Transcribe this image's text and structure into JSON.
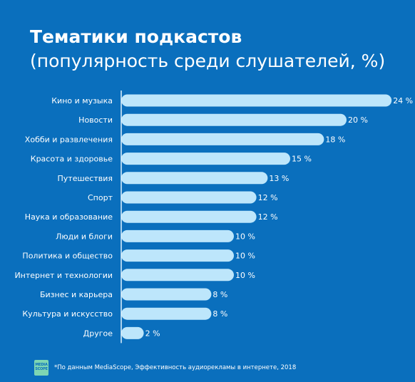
{
  "title": "Тематики подкастов",
  "subtitle": "(популярность среди слушателей, %)",
  "source": "*По данным MediaScope, Эффективность аудиорекламы в интернете, 2018",
  "logo": {
    "line1": "MEDIA",
    "line2": "SCOPE"
  },
  "colors": {
    "background": "#0a6fbd",
    "bar": "#bde6fb",
    "axis": "#dff2fd",
    "text": "#ffffff"
  },
  "chart_data": {
    "type": "bar",
    "orientation": "horizontal",
    "categories": [
      "Кино и музыка",
      "Новости",
      "Хобби и развлечения",
      "Красота и здоровье",
      "Путешествия",
      "Спорт",
      "Наука и образование",
      "Люди и блоги",
      "Политика и общество",
      "Интернет и технологии",
      "Бизнес и карьера",
      "Культура и искусство",
      "Другое"
    ],
    "values": [
      24,
      20,
      18,
      15,
      13,
      12,
      12,
      10,
      10,
      10,
      8,
      8,
      2
    ],
    "value_labels": [
      "24 %",
      "20 %",
      "18 %",
      "15 %",
      "13 %",
      "12 %",
      "12 %",
      "10 %",
      "10 %",
      "10 %",
      "8 %",
      "8 %",
      "2 %"
    ],
    "unit": "%",
    "grid": false,
    "legend": "none"
  }
}
